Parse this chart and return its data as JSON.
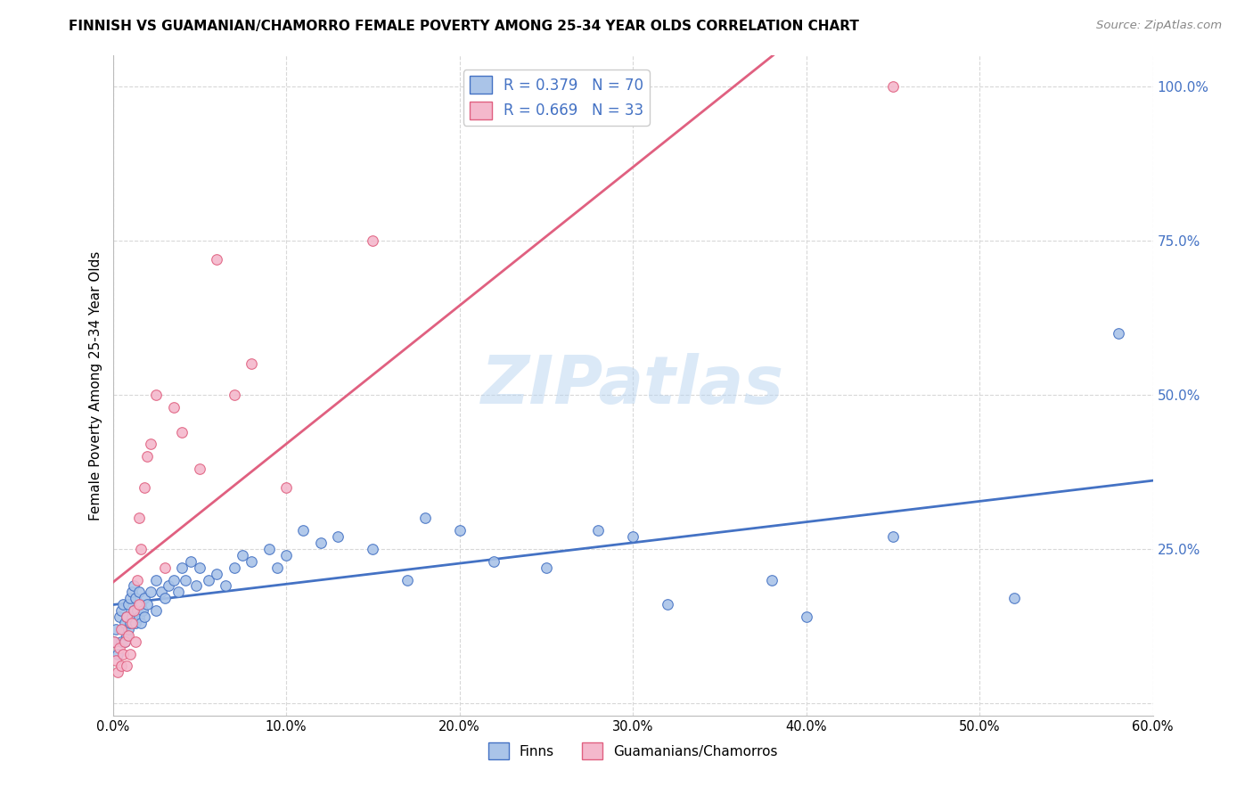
{
  "title": "FINNISH VS GUAMANIAN/CHAMORRO FEMALE POVERTY AMONG 25-34 YEAR OLDS CORRELATION CHART",
  "source": "Source: ZipAtlas.com",
  "ylabel": "Female Poverty Among 25-34 Year Olds",
  "xlabel_ticks": [
    "0.0%",
    "10.0%",
    "20.0%",
    "30.0%",
    "40.0%",
    "50.0%",
    "60.0%"
  ],
  "xlabel_vals": [
    0.0,
    0.1,
    0.2,
    0.3,
    0.4,
    0.5,
    0.6
  ],
  "ylabel_ticks_right": [
    "100.0%",
    "75.0%",
    "50.0%",
    "25.0%"
  ],
  "ylabel_vals_right": [
    1.0,
    0.75,
    0.5,
    0.25
  ],
  "xlim": [
    0.0,
    0.6
  ],
  "ylim": [
    -0.02,
    1.05
  ],
  "finns_color": "#aac4e8",
  "finns_line_color": "#4472c4",
  "guam_color": "#f4b8cc",
  "guam_line_color": "#e06080",
  "finns_R": 0.379,
  "finns_N": 70,
  "guam_R": 0.669,
  "guam_N": 33,
  "finns_x": [
    0.001,
    0.002,
    0.003,
    0.004,
    0.005,
    0.005,
    0.006,
    0.006,
    0.007,
    0.007,
    0.008,
    0.008,
    0.009,
    0.009,
    0.01,
    0.01,
    0.011,
    0.011,
    0.012,
    0.012,
    0.013,
    0.013,
    0.014,
    0.015,
    0.015,
    0.016,
    0.016,
    0.017,
    0.018,
    0.018,
    0.02,
    0.022,
    0.025,
    0.025,
    0.028,
    0.03,
    0.032,
    0.035,
    0.038,
    0.04,
    0.042,
    0.045,
    0.048,
    0.05,
    0.055,
    0.06,
    0.065,
    0.07,
    0.075,
    0.08,
    0.09,
    0.095,
    0.1,
    0.11,
    0.12,
    0.13,
    0.15,
    0.17,
    0.18,
    0.2,
    0.22,
    0.25,
    0.28,
    0.3,
    0.32,
    0.38,
    0.4,
    0.45,
    0.52,
    0.58
  ],
  "finns_y": [
    0.1,
    0.12,
    0.08,
    0.14,
    0.1,
    0.15,
    0.12,
    0.16,
    0.1,
    0.13,
    0.11,
    0.14,
    0.12,
    0.16,
    0.13,
    0.17,
    0.14,
    0.18,
    0.15,
    0.19,
    0.13,
    0.17,
    0.15,
    0.14,
    0.18,
    0.13,
    0.16,
    0.15,
    0.14,
    0.17,
    0.16,
    0.18,
    0.15,
    0.2,
    0.18,
    0.17,
    0.19,
    0.2,
    0.18,
    0.22,
    0.2,
    0.23,
    0.19,
    0.22,
    0.2,
    0.21,
    0.19,
    0.22,
    0.24,
    0.23,
    0.25,
    0.22,
    0.24,
    0.28,
    0.26,
    0.27,
    0.25,
    0.2,
    0.3,
    0.28,
    0.23,
    0.22,
    0.28,
    0.27,
    0.16,
    0.2,
    0.14,
    0.27,
    0.17,
    0.6
  ],
  "guam_x": [
    0.001,
    0.002,
    0.003,
    0.004,
    0.005,
    0.005,
    0.006,
    0.007,
    0.008,
    0.008,
    0.009,
    0.01,
    0.011,
    0.012,
    0.013,
    0.014,
    0.015,
    0.015,
    0.016,
    0.018,
    0.02,
    0.022,
    0.025,
    0.03,
    0.035,
    0.04,
    0.05,
    0.06,
    0.07,
    0.08,
    0.1,
    0.15,
    0.45
  ],
  "guam_y": [
    0.1,
    0.07,
    0.05,
    0.09,
    0.06,
    0.12,
    0.08,
    0.1,
    0.06,
    0.14,
    0.11,
    0.08,
    0.13,
    0.15,
    0.1,
    0.2,
    0.16,
    0.3,
    0.25,
    0.35,
    0.4,
    0.42,
    0.5,
    0.22,
    0.48,
    0.44,
    0.38,
    0.72,
    0.5,
    0.55,
    0.35,
    0.75,
    1.0
  ],
  "watermark": "ZIPatlas",
  "background_color": "#ffffff",
  "grid_color": "#d8d8d8"
}
